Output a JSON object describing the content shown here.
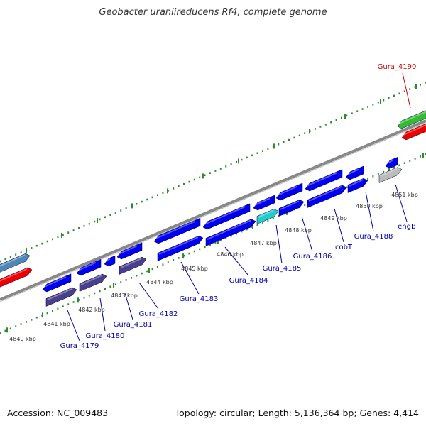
{
  "title": "Geobacter uraniireducens Rf4, complete genome",
  "footer": {
    "accession": "Accession: NC_009483",
    "summary": "Topology: circular; Length: 5,136,364 bp; Genes: 4,414"
  },
  "colors": {
    "gene": "#0000ee",
    "gene_dark": "#4a3f8c",
    "gene_cyan": "#22cccc",
    "gene_grey": "#bbbbbb",
    "gene_red": "#ee0000",
    "gene_green": "#33bb33",
    "gene_steel": "#4f86b8",
    "backbone": "#888888",
    "tick": "#2e8b2e",
    "label_blue": "#0000aa",
    "label_red": "#cc0000"
  },
  "ruler_labels": [
    "4840 kbp",
    "4841 kbp",
    "4842 kbp",
    "4843 kbp",
    "4844 kbp",
    "4845 kbp",
    "4846 kbp",
    "4847 kbp",
    "4848 kbp",
    "4849 kbp",
    "4850 kbp",
    "4851 kbp"
  ],
  "gene_labels": [
    "Gura_4179",
    "Gura_4180",
    "Gura_4181",
    "Gura_4182",
    "Gura_4183",
    "Gura_4184",
    "Gura_4185",
    "Gura_4186",
    "cobT",
    "Gura_4188",
    "engB",
    "Gura_4190"
  ]
}
